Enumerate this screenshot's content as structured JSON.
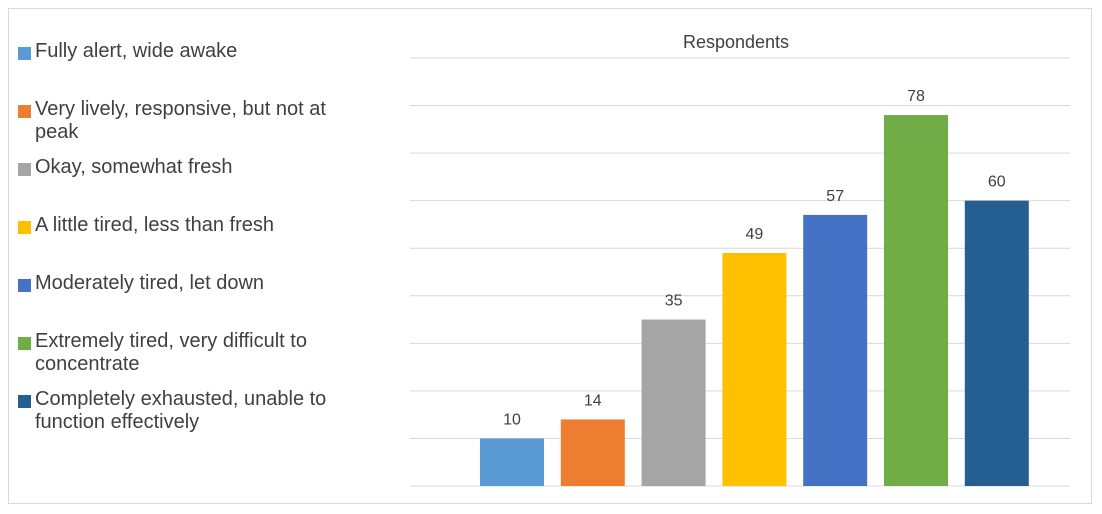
{
  "chart_data": {
    "type": "bar",
    "title": "Respondents",
    "xlabel": "",
    "ylabel": "",
    "ylim": [
      0,
      90
    ],
    "grid": true,
    "legend_placement": "left",
    "categories": [
      "Fully alert, wide awake",
      "Very lively, responsive, but not at peak",
      "Okay, somewhat fresh",
      "A little tired, less than fresh",
      "Moderately tired, let down",
      "Extremely tired, very difficult to concentrate",
      "Completely exhausted, unable to function effectively"
    ],
    "values": [
      10,
      14,
      35,
      49,
      57,
      78,
      60
    ],
    "colors": [
      "#5b9bd5",
      "#ed7d31",
      "#a5a5a5",
      "#ffc000",
      "#4472c4",
      "#70ad47",
      "#255e91"
    ]
  },
  "legend": {
    "items": [
      {
        "lines": [
          "Fully alert, wide awake"
        ]
      },
      {
        "lines": [
          "Very lively, responsive, but not at",
          "peak"
        ]
      },
      {
        "lines": [
          "Okay, somewhat fresh"
        ]
      },
      {
        "lines": [
          "A little tired, less than fresh"
        ]
      },
      {
        "lines": [
          "Moderately tired, let down"
        ]
      },
      {
        "lines": [
          "Extremely tired, very difficult to",
          "concentrate"
        ]
      },
      {
        "lines": [
          "Completely exhausted, unable to",
          "function effectively"
        ]
      }
    ]
  }
}
